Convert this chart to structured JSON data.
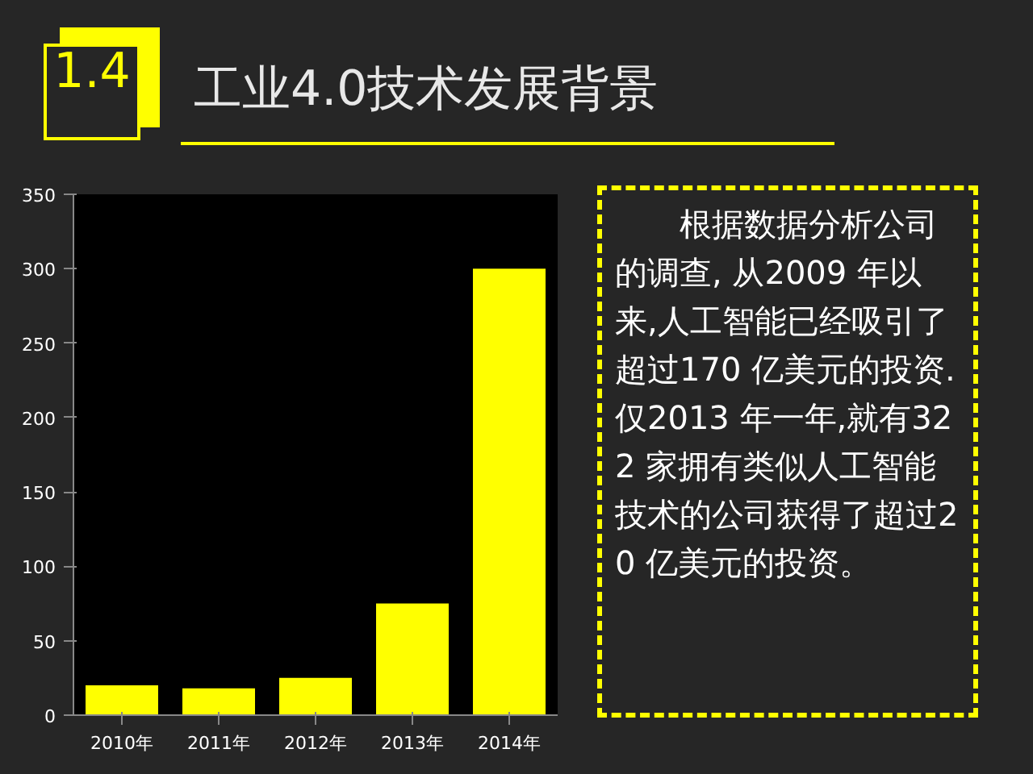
{
  "chart_data": {
    "type": "bar",
    "title": "工业4.0技术发展背景",
    "categories": [
      "2010年",
      "2011年",
      "2012年",
      "2013年",
      "2014年"
    ],
    "values": [
      20,
      18,
      25,
      75,
      300
    ],
    "color": "#ffff00",
    "ylim": [
      0,
      350
    ],
    "yticks": [
      0,
      50,
      100,
      150,
      200,
      250,
      300,
      350
    ],
    "grid": false,
    "annotations": [
      "1.4",
      "根据数据分析公司的调查, 从2009 年以来,人工智能已经吸引了超过170 亿美元的投资. 仅2013 年一年,就有322 家拥有类似人工智能技术的公司获得了超过20 亿美元的投资。"
    ]
  }
}
